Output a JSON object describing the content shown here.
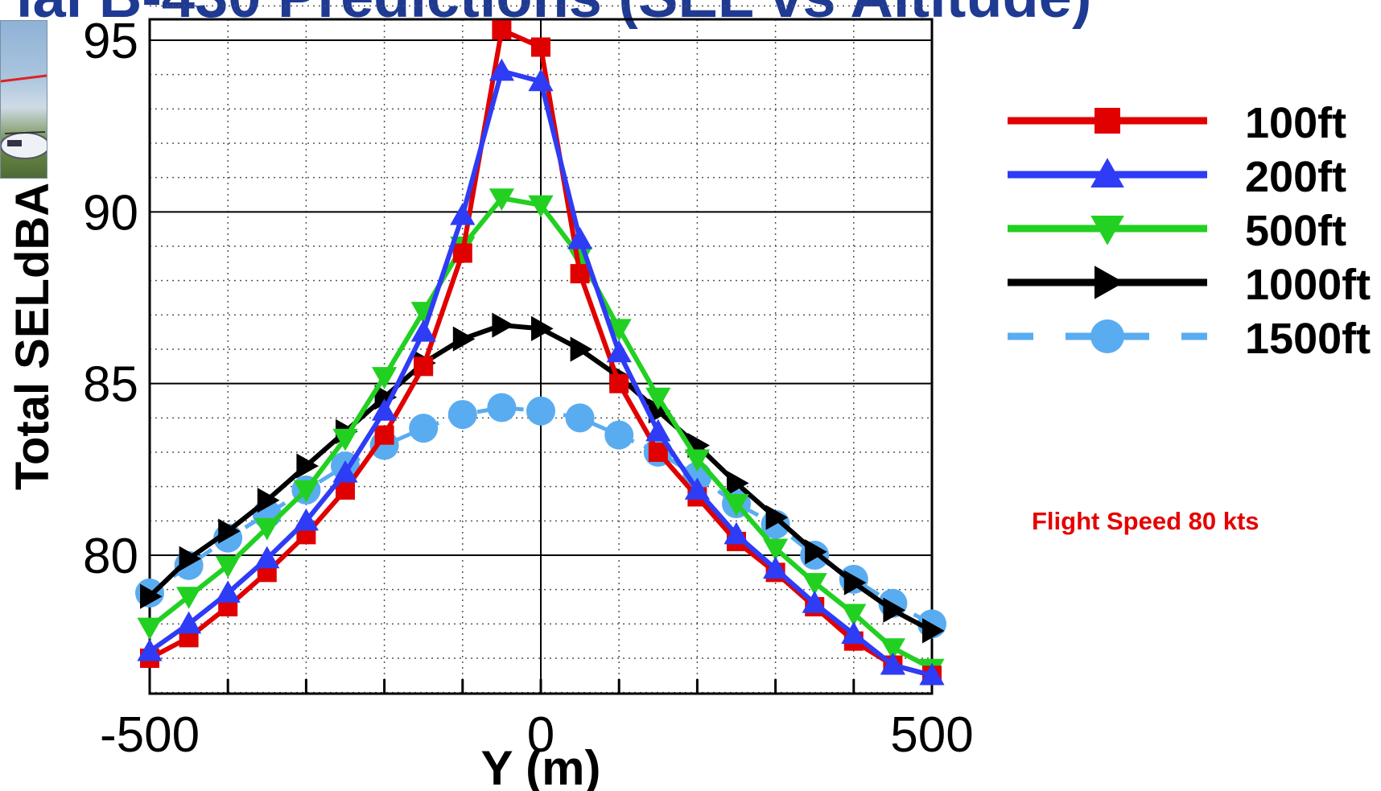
{
  "page_title": "ial B-430 Predictions (SEL vs Altitude)",
  "note": "Flight Speed 80 kts",
  "chart_data": {
    "type": "line",
    "xlabel": "Y (m)",
    "ylabel": "Total SELdBA",
    "xlim": [
      -500,
      500
    ],
    "ylim": [
      76,
      96
    ],
    "x_tick_labels": [
      "-500",
      "0",
      "500"
    ],
    "y_tick_labels": [
      "80",
      "85",
      "90",
      "95"
    ],
    "grid": true,
    "legend_position": "right",
    "x": [
      -500,
      -450,
      -400,
      -350,
      -300,
      -250,
      -200,
      -150,
      -100,
      -50,
      0,
      50,
      100,
      150,
      200,
      250,
      300,
      350,
      400,
      450,
      500
    ],
    "series": [
      {
        "name": "100ft",
        "color": "#e00000",
        "marker": "square",
        "dash": "solid",
        "values": [
          77.0,
          77.6,
          78.5,
          79.5,
          80.6,
          81.9,
          83.5,
          85.5,
          88.8,
          95.3,
          94.8,
          88.2,
          85.0,
          83.0,
          81.7,
          80.4,
          79.5,
          78.5,
          77.5,
          76.8,
          76.5
        ]
      },
      {
        "name": "200ft",
        "color": "#2e3cf5",
        "marker": "triangle-up",
        "dash": "solid",
        "values": [
          77.2,
          78.0,
          78.9,
          79.9,
          81.0,
          82.4,
          84.2,
          86.5,
          89.9,
          94.1,
          93.8,
          89.2,
          85.9,
          83.6,
          81.9,
          80.6,
          79.6,
          78.6,
          77.7,
          76.8,
          76.5
        ]
      },
      {
        "name": "500ft",
        "color": "#22d022",
        "marker": "triangle-down",
        "dash": "solid",
        "values": [
          77.9,
          78.8,
          79.7,
          80.8,
          81.9,
          83.4,
          85.2,
          87.1,
          89.0,
          90.4,
          90.2,
          88.7,
          86.6,
          84.6,
          82.8,
          81.5,
          80.2,
          79.2,
          78.3,
          77.3,
          76.7
        ]
      },
      {
        "name": "1000ft",
        "color": "#000000",
        "marker": "triangle-right",
        "dash": "solid",
        "values": [
          78.8,
          79.9,
          80.7,
          81.6,
          82.6,
          83.6,
          84.6,
          85.6,
          86.3,
          86.7,
          86.6,
          86.0,
          85.2,
          84.2,
          83.2,
          82.1,
          81.1,
          80.1,
          79.2,
          78.4,
          77.8
        ]
      },
      {
        "name": "1500ft",
        "color": "#5aacf0",
        "marker": "circle",
        "dash": "dashed",
        "values": [
          78.9,
          79.7,
          80.5,
          81.2,
          81.9,
          82.6,
          83.2,
          83.7,
          84.1,
          84.3,
          84.2,
          84.0,
          83.5,
          83.0,
          82.3,
          81.5,
          80.9,
          80.0,
          79.3,
          78.6,
          78.0
        ]
      }
    ]
  }
}
